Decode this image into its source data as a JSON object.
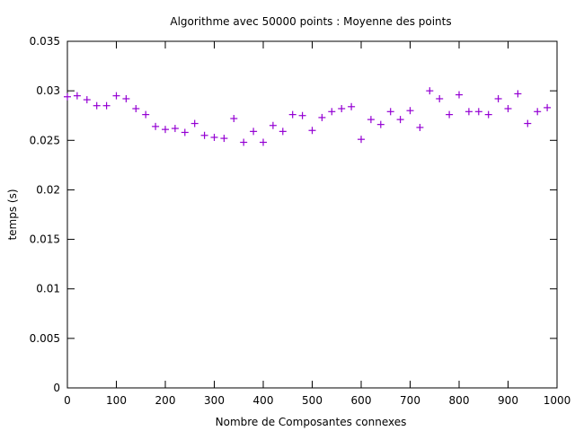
{
  "chart_data": {
    "type": "scatter",
    "title": "Algorithme avec 50000 points : Moyenne des points",
    "xlabel": "Nombre de Composantes connexes",
    "ylabel": "temps (s)",
    "xlim": [
      0,
      1000
    ],
    "ylim": [
      0,
      0.035
    ],
    "xticks": [
      "0",
      "100",
      "200",
      "300",
      "400",
      "500",
      "600",
      "700",
      "800",
      "900",
      "1000"
    ],
    "yticks": [
      "0",
      "0.005",
      "0.01",
      "0.015",
      "0.02",
      "0.025",
      "0.03",
      "0.035"
    ],
    "grid": false,
    "marker": "+",
    "color": "#9400d3",
    "series": [
      {
        "x": [
          0,
          20,
          40,
          60,
          80,
          100,
          120,
          140,
          160,
          180,
          200,
          220,
          240,
          260,
          280,
          300,
          320,
          340,
          360,
          380,
          400,
          420,
          440,
          460,
          480,
          500,
          520,
          540,
          560,
          580,
          600,
          620,
          640,
          660,
          680,
          700,
          720,
          740,
          760,
          780,
          800,
          820,
          840,
          860,
          880,
          900,
          920,
          940,
          960,
          980
        ],
        "y": [
          0.0294,
          0.0295,
          0.0291,
          0.0285,
          0.0285,
          0.0295,
          0.0292,
          0.0282,
          0.0276,
          0.0264,
          0.0261,
          0.0262,
          0.0258,
          0.0267,
          0.0255,
          0.0253,
          0.0252,
          0.0272,
          0.0248,
          0.0259,
          0.0248,
          0.0265,
          0.0259,
          0.0276,
          0.0275,
          0.026,
          0.0273,
          0.0279,
          0.0282,
          0.0284,
          0.0251,
          0.0271,
          0.0266,
          0.0279,
          0.0271,
          0.028,
          0.0263,
          0.03,
          0.0292,
          0.0276,
          0.0296,
          0.0279,
          0.0279,
          0.0276,
          0.0292,
          0.0282,
          0.0297,
          0.0267,
          0.0279,
          0.0283
        ]
      }
    ]
  }
}
